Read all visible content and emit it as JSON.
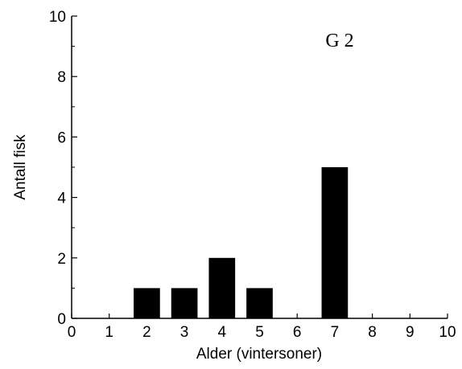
{
  "chart_data": {
    "type": "bar",
    "x": [
      2,
      3,
      4,
      5,
      7
    ],
    "values": [
      1,
      1,
      2,
      1,
      5
    ],
    "xlabel": "Alder (vintersoner)",
    "ylabel": "Antall fisk",
    "xlim": [
      0,
      10
    ],
    "ylim": [
      0,
      10
    ],
    "xticks": [
      "0",
      "1",
      "2",
      "3",
      "4",
      "5",
      "6",
      "7",
      "8",
      "9",
      "10"
    ],
    "yticks": [
      "0",
      "2",
      "4",
      "6",
      "8",
      "10"
    ],
    "annotation": "G 2",
    "grid": false,
    "legend": "none",
    "bar_color": "#000000"
  }
}
